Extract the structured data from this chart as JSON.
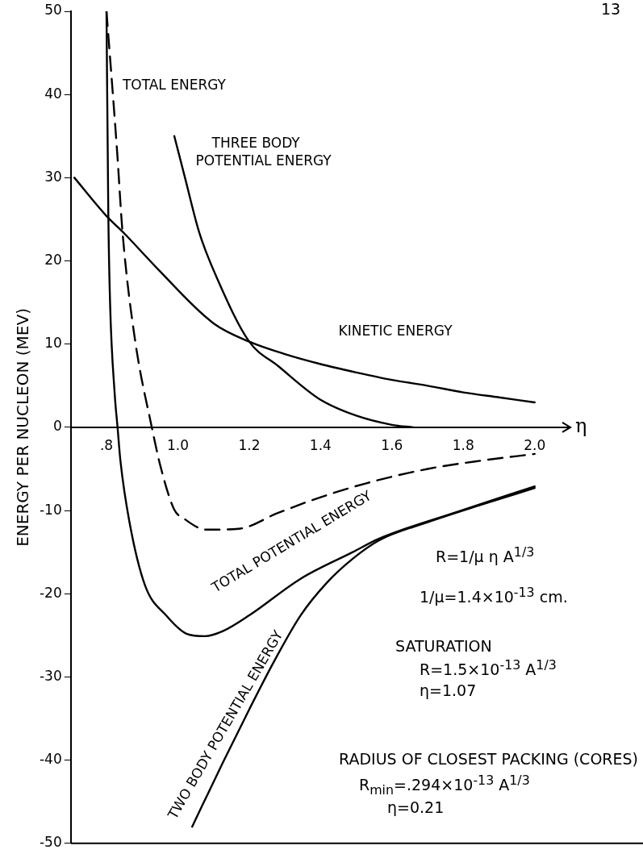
{
  "chart_data": {
    "type": "line",
    "xlabel": "η",
    "ylabel": "ENERGY PER NUCLEON (MEV)",
    "xlim": [
      0.7,
      2.1
    ],
    "ylim": [
      -50,
      50
    ],
    "xticks": [
      {
        "value": 0.8,
        "label": ".8"
      },
      {
        "value": 1.0,
        "label": "1.0"
      },
      {
        "value": 1.2,
        "label": "1.2"
      },
      {
        "value": 1.4,
        "label": "1.4"
      },
      {
        "value": 1.6,
        "label": "1.6"
      },
      {
        "value": 1.8,
        "label": "1.8"
      },
      {
        "value": 2.0,
        "label": "2.0"
      }
    ],
    "yticks": [
      50,
      40,
      30,
      20,
      10,
      0,
      -10,
      -20,
      -30,
      -40,
      -50
    ],
    "grid": false,
    "legend": false,
    "marker": "none",
    "series": [
      {
        "name": "TOTAL ENERGY",
        "color": "#000000",
        "line_style": "dashed",
        "x": [
          0.8,
          0.83,
          0.845,
          0.88,
          0.927,
          0.952,
          0.99,
          1.015,
          1.08,
          1.17,
          1.28,
          1.4,
          1.53,
          1.7,
          1.85,
          2.0
        ],
        "values": [
          50,
          33,
          23.4,
          10.5,
          0,
          -4.8,
          -9.9,
          -10.9,
          -12.3,
          -12.2,
          -10.3,
          -8.4,
          -6.7,
          -5,
          -4,
          -3.2
        ]
      },
      {
        "name": "THREE BODY POTENTIAL ENERGY",
        "color": "#000000",
        "x": [
          0.99,
          1.02,
          1.06,
          1.11,
          1.2,
          1.28,
          1.4,
          1.5,
          1.6,
          1.66
        ],
        "values": [
          35,
          30,
          23.4,
          17.9,
          10.3,
          7.4,
          3.3,
          1.4,
          0.3,
          0
        ]
      },
      {
        "name": "KINETIC ENERGY",
        "color": "#000000",
        "x": [
          0.71,
          0.8,
          0.85,
          0.94,
          1.1,
          1.2,
          1.3,
          1.4,
          1.5,
          1.6,
          1.7,
          1.8,
          1.9,
          2.0
        ],
        "values": [
          30,
          25.4,
          23.3,
          19.2,
          12.5,
          10.3,
          8.8,
          7.6,
          6.6,
          5.7,
          5,
          4.2,
          3.6,
          3
        ]
      },
      {
        "name": "TOTAL POTENTIAL ENERGY",
        "color": "#000000",
        "x": [
          0.8,
          0.805,
          0.81,
          0.823,
          0.831,
          0.839,
          0.864,
          0.908,
          0.967,
          1.024,
          1.076,
          1.126,
          1.2,
          1.344,
          1.49,
          1.563,
          1.78,
          2.0
        ],
        "values": [
          50,
          26,
          15,
          4,
          0,
          -4,
          -11.3,
          -19,
          -22.6,
          -24.8,
          -25.1,
          -24.5,
          -22.6,
          -18.2,
          -15,
          -13.4,
          -10.2,
          -7.1
        ]
      },
      {
        "name": "TWO BODY POTENTIAL ENERGY",
        "color": "#000000",
        "x": [
          1.04,
          1.126,
          1.2,
          1.27,
          1.344,
          1.417,
          1.49,
          1.563,
          1.7,
          1.85,
          2.0
        ],
        "values": [
          -48,
          -40.3,
          -33.9,
          -28.1,
          -22.6,
          -18.7,
          -15.8,
          -13.6,
          -11.4,
          -9.3,
          -7.3
        ]
      }
    ],
    "annotations": [
      "13",
      "R=1/μ η A$^{1/3}$",
      "1/μ=1.4×10$^{-13}$ cm.",
      "SATURATION",
      "R=1.5×10$^{-13}$ A$^{1/3}$",
      "η=1.07",
      "RADIUS OF CLOSEST PACKING (CORES)",
      "R$_{min}$=.294×10$^{-13}$ A$^{1/3}$",
      "η=0.21"
    ]
  }
}
